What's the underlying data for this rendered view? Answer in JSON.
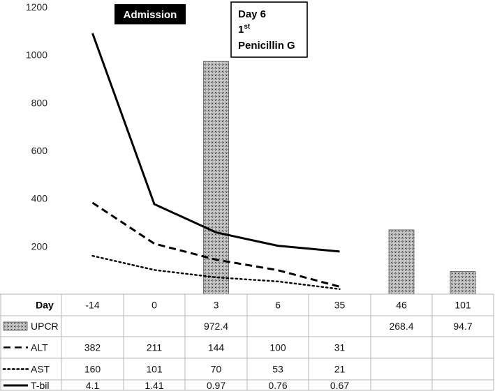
{
  "chart_data": {
    "type": "bar",
    "x_title": "Day",
    "categories": [
      "-14",
      "0",
      "3",
      "6",
      "35",
      "46",
      "101"
    ],
    "ylim": [
      0,
      1200
    ],
    "yticks": [
      200,
      400,
      600,
      800,
      1000,
      1200
    ],
    "grid": false,
    "series": [
      {
        "name": "UPCR",
        "kind": "bar",
        "fill": "crosshatch-gray",
        "values": [
          null,
          null,
          972.4,
          null,
          null,
          268.4,
          94.7
        ],
        "labels": [
          "",
          "",
          "972.4",
          "",
          "",
          "268.4",
          "94.7"
        ]
      },
      {
        "name": "ALT",
        "kind": "line",
        "dash": "dashed",
        "values": [
          382,
          211,
          144,
          100,
          31,
          null,
          null
        ],
        "labels": [
          "382",
          "211",
          "144",
          "100",
          "31",
          "",
          ""
        ]
      },
      {
        "name": "AST",
        "kind": "line",
        "dash": "dotted",
        "values": [
          160,
          101,
          70,
          53,
          21,
          null,
          null
        ],
        "labels": [
          "160",
          "101",
          "70",
          "53",
          "21",
          "",
          ""
        ]
      },
      {
        "name": "T-bil",
        "kind": "line",
        "dash": "solid",
        "plot_values": [
          1090,
          376,
          258,
          202,
          178,
          null,
          null
        ],
        "labels": [
          "4.1",
          "1.41",
          "0.97",
          "0.76",
          "0.67",
          "",
          ""
        ]
      }
    ],
    "annotations": [
      {
        "text": "Admission",
        "style": "black-box"
      },
      {
        "lines": [
          "Day 6",
          "1",
          "Penicillin G"
        ],
        "sup": "st",
        "style": "outlined-box"
      }
    ]
  }
}
